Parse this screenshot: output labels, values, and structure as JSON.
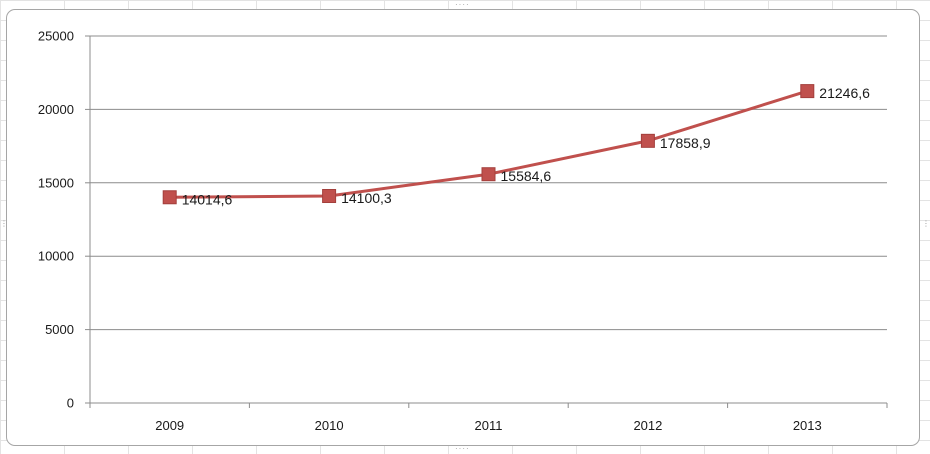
{
  "chart_data": {
    "type": "line",
    "title": "",
    "xlabel": "",
    "ylabel": "",
    "categories": [
      "2009",
      "2010",
      "2011",
      "2012",
      "2013"
    ],
    "series": [
      {
        "values": [
          14014.6,
          14100.3,
          15584.6,
          17858.9,
          21246.6
        ],
        "labels": [
          "14014,6",
          "14100,3",
          "15584,6",
          "17858,9",
          "21246,6"
        ],
        "color": "#c0504d",
        "marker": "square"
      }
    ],
    "ylim": [
      0,
      25000
    ],
    "yticks": [
      0,
      5000,
      10000,
      15000,
      20000,
      25000
    ],
    "ytick_labels": [
      "0",
      "5000",
      "10000",
      "15000",
      "20000",
      "25000"
    ],
    "grid": true,
    "legend": "none"
  }
}
